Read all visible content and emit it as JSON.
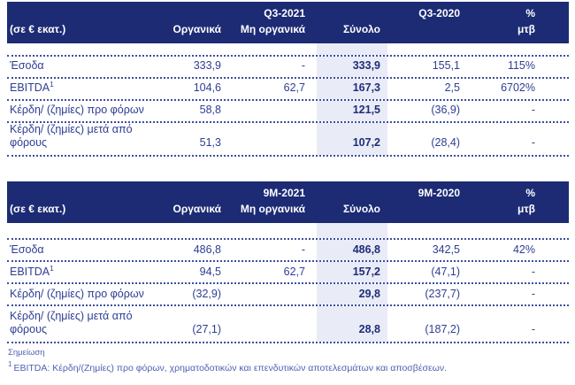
{
  "colors": {
    "header_bg": "#1c2b74",
    "header_text": "#ffffff",
    "body_text": "#2e3e93",
    "total_column_highlight": "#e9ecf6",
    "dotted_divider": "#3c4e9e",
    "note_text": "#5061b2"
  },
  "tables": [
    {
      "unit_label": "(σε € εκατ.)",
      "period_label": "Q3-2021",
      "compare_label": "Q3-2020",
      "pct_symbol": "%",
      "col_headers": {
        "organic": "Οργανικά",
        "non_organic": "Μη οργανικά",
        "total": "Σύνολο",
        "change": "μτβ"
      },
      "rows": [
        {
          "label": "Έσοδα",
          "organic": "333,9",
          "non_organic": "-",
          "total": "333,9",
          "compare": "155,1",
          "change": "115%"
        },
        {
          "label": "EBITDA",
          "label_sup": "1",
          "organic": "104,6",
          "non_organic": "62,7",
          "total": "167,3",
          "compare": "2,5",
          "change": "6702%"
        },
        {
          "label": "Κέρδη/ (ζημίες) προ φόρων",
          "organic": "58,8",
          "non_organic": "",
          "total": "121,5",
          "compare": "(36,9)",
          "change": "-"
        },
        {
          "label": "Κέρδη/ (ζημίες) μετά από φόρους",
          "organic": "51,3",
          "non_organic": "",
          "total": "107,2",
          "compare": "(28,4)",
          "change": "-"
        }
      ]
    },
    {
      "unit_label": "(σε € εκατ.)",
      "period_label": "9M-2021",
      "compare_label": "9M-2020",
      "pct_symbol": "%",
      "col_headers": {
        "organic": "Οργανικά",
        "non_organic": "Μη οργανικά",
        "total": "Σύνολο",
        "change": "μτβ"
      },
      "rows": [
        {
          "label": "Έσοδα",
          "organic": "486,8",
          "non_organic": "-",
          "total": "486,8",
          "compare": "342,5",
          "change": "42%"
        },
        {
          "label": "EBITDA",
          "label_sup": "1",
          "organic": "94,5",
          "non_organic": "62,7",
          "total": "157,2",
          "compare": "(47,1)",
          "change": "-"
        },
        {
          "label": "Κέρδη/ (ζημίες) προ φόρων",
          "organic": "(32,9)",
          "non_organic": "",
          "total": "29,8",
          "compare": "(237,7)",
          "change": "-"
        },
        {
          "label": "Κέρδη/ (ζημίες) μετά από φόρους",
          "organic": "(27,1)",
          "non_organic": "",
          "total": "28,8",
          "compare": "(187,2)",
          "change": "-"
        }
      ]
    }
  ],
  "notes": {
    "title": "Σημείωση",
    "footnote_sup": "1",
    "footnote_text": "EBITDA: Κέρδη/(Ζημίες) προ φόρων, χρηματοδοτικών και επενδυτικών αποτελεσμάτων και αποσβέσεων."
  }
}
